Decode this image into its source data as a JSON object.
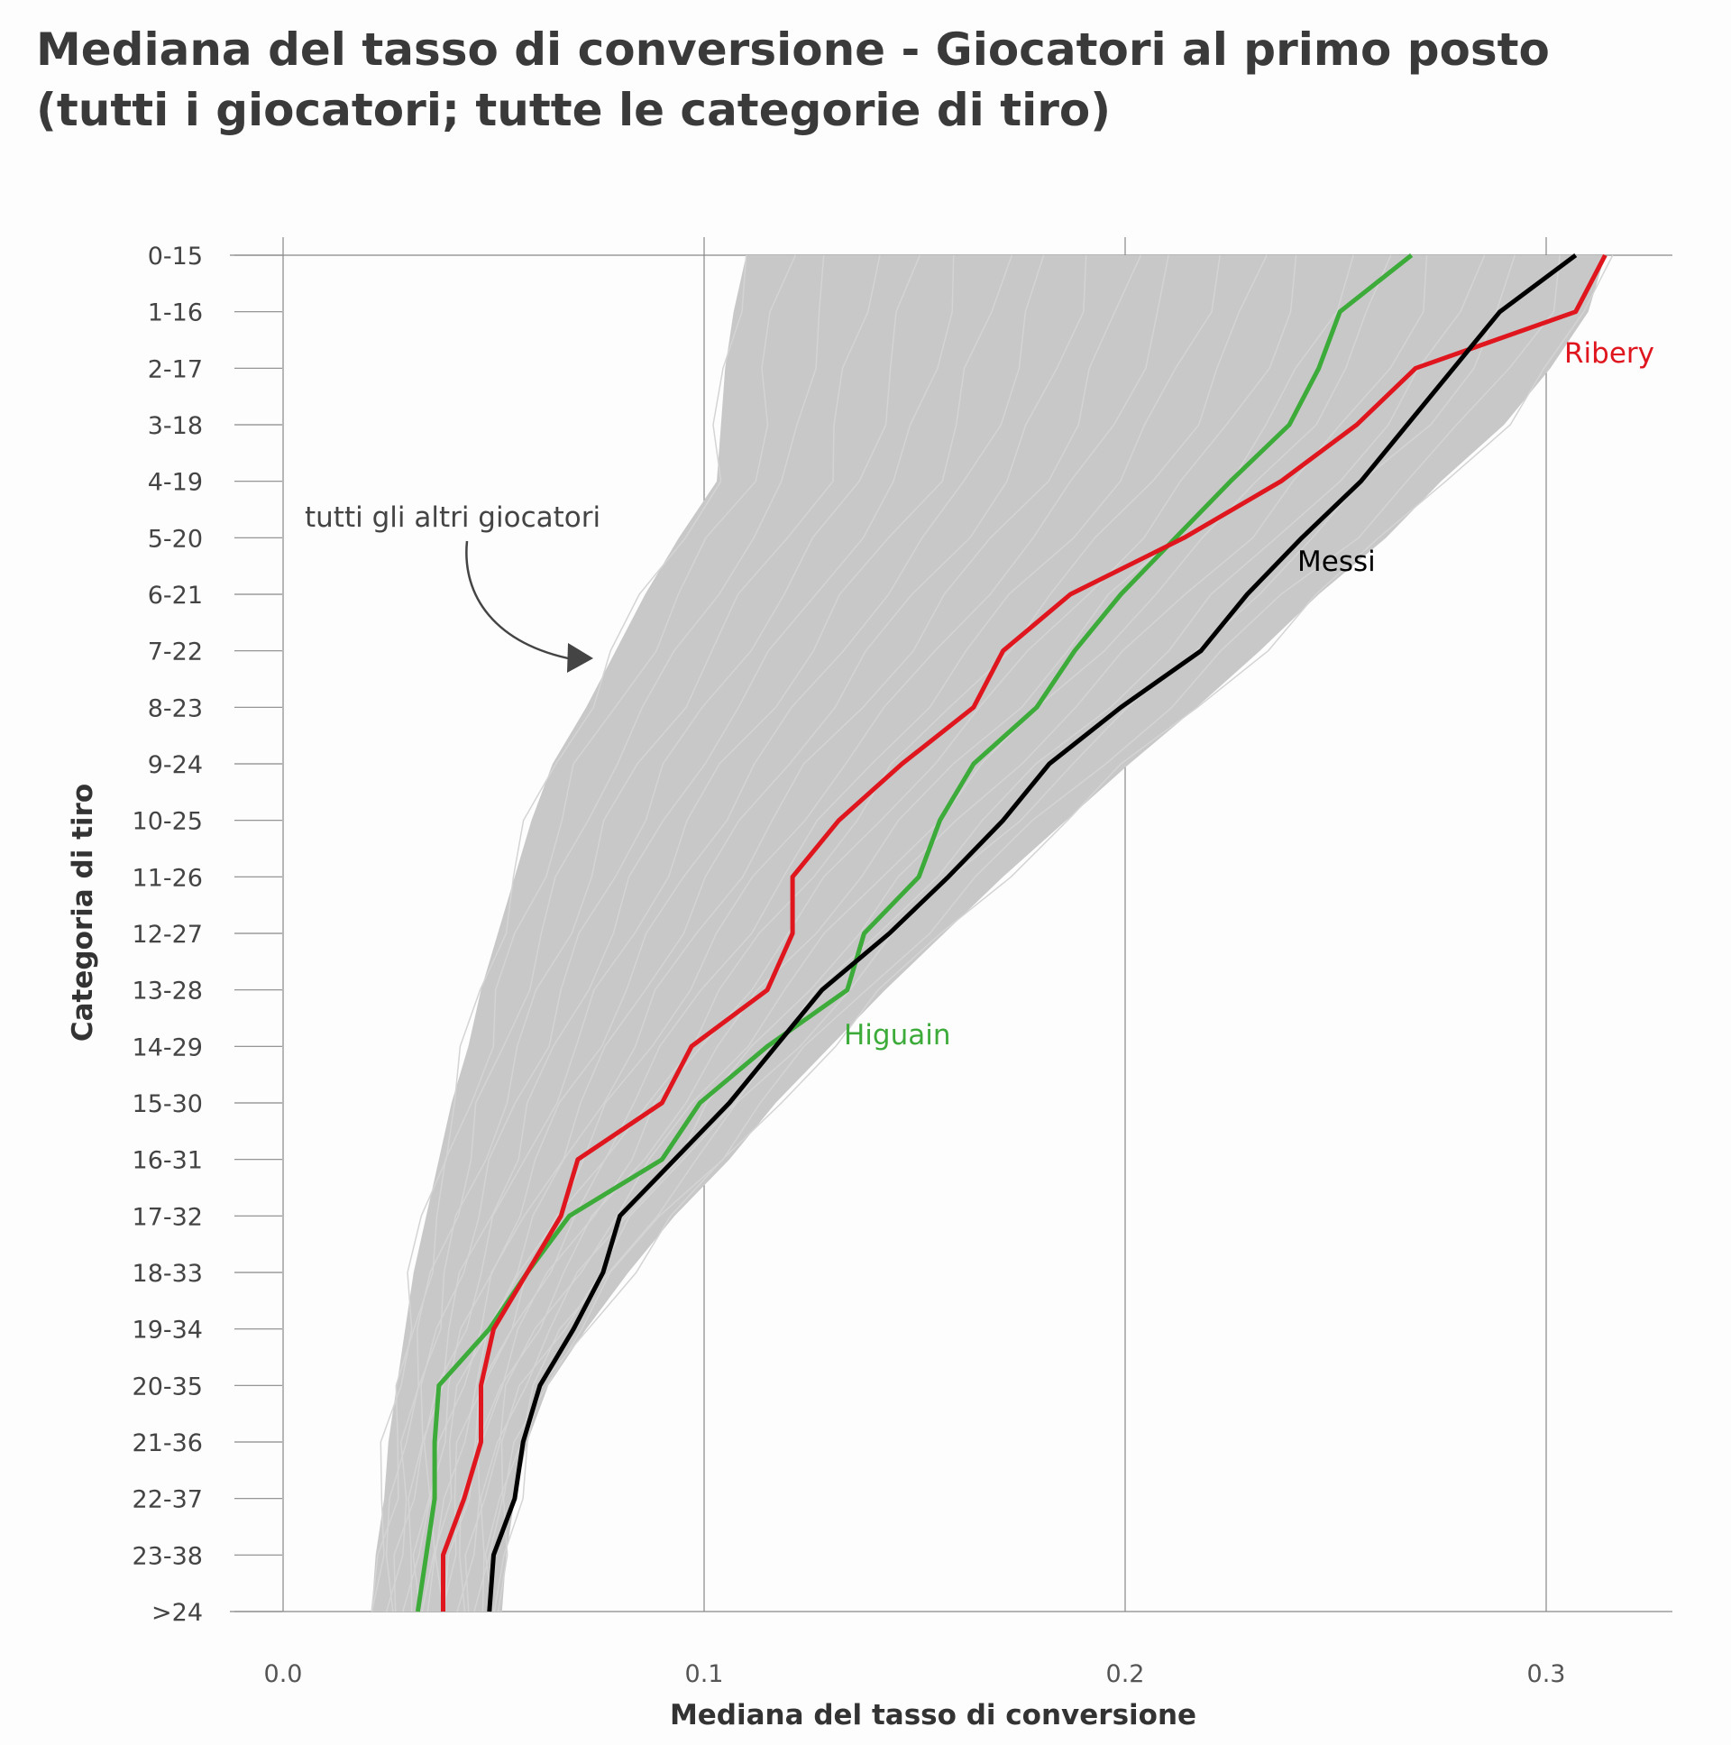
{
  "title_lines": [
    "Mediana del tasso di conversione - Giocatori al primo posto",
    "(tutti i giocatori; tutte le categorie di tiro)"
  ],
  "colors": {
    "background": "#fdfdfd",
    "others": "#c8c8c8",
    "grid": "#888888",
    "messi": "#000000",
    "ribery": "#e0161e",
    "higuain": "#3cab3a"
  },
  "chart_data": {
    "type": "line",
    "title": "Mediana del tasso di conversione - Giocatori al primo posto (tutti i giocatori; tutte le categorie di tiro)",
    "xlabel": "Mediana del tasso di conversione",
    "ylabel": "Categoria di tiro",
    "xlim": [
      0.0,
      0.33
    ],
    "xticks": [
      "0.0",
      "0.1",
      "0.2",
      "0.3"
    ],
    "xtick_values": [
      0.0,
      0.1,
      0.2,
      0.3
    ],
    "grid": true,
    "categories": [
      "0-15",
      "1-16",
      "2-17",
      "3-18",
      "4-19",
      "5-20",
      "6-21",
      "7-22",
      "8-23",
      "9-24",
      "10-25",
      "11-26",
      "12-27",
      "13-28",
      "14-29",
      "15-30",
      "16-31",
      "17-32",
      "18-33",
      "19-34",
      "20-35",
      "21-36",
      "22-37",
      "23-38",
      ">24"
    ],
    "series": [
      {
        "name": "Messi",
        "label": "Messi",
        "values": [
          0.307,
          0.289,
          0.278,
          0.267,
          0.256,
          0.242,
          0.229,
          0.218,
          0.199,
          0.182,
          0.171,
          0.158,
          0.144,
          0.128,
          0.117,
          0.106,
          0.093,
          0.08,
          0.076,
          0.069,
          0.061,
          0.057,
          0.055,
          0.05,
          0.049
        ]
      },
      {
        "name": "Ribery",
        "label": "Ribery",
        "values": [
          0.314,
          0.307,
          0.269,
          0.255,
          0.237,
          0.214,
          0.187,
          0.171,
          0.164,
          0.147,
          0.132,
          0.121,
          0.121,
          0.115,
          0.097,
          0.09,
          0.07,
          0.066,
          0.058,
          0.05,
          0.047,
          0.047,
          0.043,
          0.038,
          0.038
        ]
      },
      {
        "name": "Higuain",
        "label": "Higuain",
        "values": [
          0.268,
          0.251,
          0.246,
          0.239,
          0.225,
          0.212,
          0.199,
          0.188,
          0.179,
          0.164,
          0.156,
          0.151,
          0.138,
          0.134,
          0.115,
          0.099,
          0.09,
          0.068,
          0.058,
          0.049,
          0.037,
          0.036,
          0.036,
          0.034,
          0.032
        ]
      }
    ],
    "others_band": {
      "label": "tutti gli altri giocatori",
      "left": [
        0.11,
        0.107,
        0.105,
        0.104,
        0.103,
        0.094,
        0.086,
        0.079,
        0.072,
        0.064,
        0.059,
        0.055,
        0.051,
        0.047,
        0.044,
        0.04,
        0.037,
        0.034,
        0.031,
        0.029,
        0.027,
        0.025,
        0.024,
        0.022,
        0.021
      ],
      "right": [
        0.314,
        0.31,
        0.301,
        0.29,
        0.275,
        0.262,
        0.246,
        0.232,
        0.217,
        0.201,
        0.186,
        0.171,
        0.157,
        0.143,
        0.13,
        0.117,
        0.106,
        0.093,
        0.082,
        0.072,
        0.063,
        0.058,
        0.055,
        0.053,
        0.052
      ]
    }
  }
}
